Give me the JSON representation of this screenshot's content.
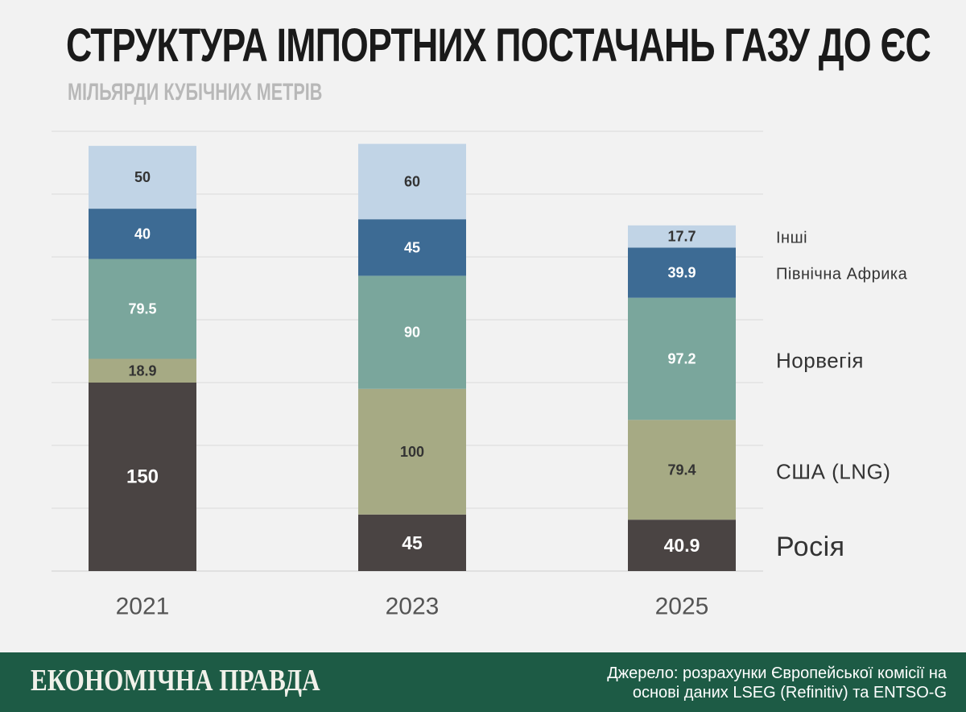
{
  "title": "СТРУКТУРА ІМПОРТНИХ ПОСТАЧАНЬ ГАЗУ ДО ЄС",
  "subtitle": "МІЛЬЯРДИ КУБІЧНИХ МЕТРІВ",
  "footer": {
    "brand": "ЕКОНОМІЧНА ПРАВДА",
    "source_line1": "Джерело: розрахунки Європейської комісії на",
    "source_line2": "основі даних LSEG (Refinitiv) та ENTSO-G"
  },
  "colors": {
    "Росія": "#4a4443",
    "США (LNG)": "#a6aa84",
    "Норвегія": "#7aa69c",
    "Північна Африка": "#3d6b94",
    "Інші": "#c1d4e6"
  },
  "chart_data": {
    "type": "bar",
    "stacked": true,
    "title": "СТРУКТУРА ІМПОРТНИХ ПОСТАЧАНЬ ГАЗУ ДО ЄС",
    "ylabel": "МІЛЬЯРДИ КУБІЧНИХ МЕТРІВ",
    "xlabel": "",
    "categories": [
      "2021",
      "2023",
      "2025"
    ],
    "ylim": [
      0,
      350
    ],
    "grid": true,
    "legend": "right",
    "series": [
      {
        "name": "Росія",
        "values": [
          150,
          45,
          40.9
        ],
        "labels": [
          "150",
          "45",
          "40.9"
        ]
      },
      {
        "name": "США (LNG)",
        "values": [
          18.9,
          100,
          79.4
        ],
        "labels": [
          "18.9",
          "100",
          "79.4"
        ]
      },
      {
        "name": "Норвегія",
        "values": [
          79.5,
          90,
          97.2
        ],
        "labels": [
          "79.5",
          "90",
          "97.2"
        ]
      },
      {
        "name": "Північна Африка",
        "values": [
          40,
          45,
          39.9
        ],
        "labels": [
          "40",
          "45",
          "39.9"
        ]
      },
      {
        "name": "Інші",
        "values": [
          50,
          60,
          17.7
        ],
        "labels": [
          "50",
          "60",
          "17.7"
        ]
      }
    ]
  }
}
